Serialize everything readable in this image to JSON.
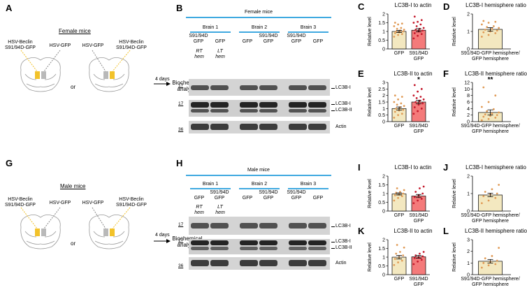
{
  "letters": {
    "A": "A",
    "B": "B",
    "C": "C",
    "D": "D",
    "E": "E",
    "F": "F",
    "G": "G",
    "H": "H",
    "I": "I",
    "J": "J",
    "K": "K",
    "L": "L"
  },
  "schematic_female": {
    "title": "Female mice",
    "brain1_left": "HSV-Beclin\nS91/94D-GFP",
    "brain1_right": "HSV-GFP",
    "brain2_left": "HSV-GFP",
    "brain2_right": "HSV-Beclin\nS91/94D-GFP",
    "or": "or",
    "days": "4 days",
    "analysis": "Biochemical\nanalysis"
  },
  "schematic_male": {
    "title": "Male mice",
    "brain1_left": "HSV-Beclin\nS91/94D-GFP",
    "brain1_right": "HSV-GFP",
    "brain2_left": "HSV-GFP",
    "brain2_right": "HSV-Beclin\nS91/94D-GFP",
    "or": "or",
    "days": "4 days",
    "analysis": "Biochemical\nanalysis"
  },
  "blot_female": {
    "title": "Female mice",
    "brains": [
      "Brain 1",
      "Brain 2",
      "Brain 3"
    ],
    "brain1_lanes": [
      "S91/94D\nGFP",
      "GFP"
    ],
    "brain2_lanes": [
      "GFP",
      "S91/94D\nGFP"
    ],
    "brain3_lanes": [
      "S91/94D\nGFP",
      "GFP"
    ],
    "hem": [
      "RT\nhem",
      "LT\nhem"
    ],
    "mw": [
      "17",
      "17",
      "36"
    ],
    "bands": [
      "LC3B-I",
      "LC3B-I",
      "LC3B-II",
      "Actin"
    ]
  },
  "blot_male": {
    "title": "Male mice",
    "brains": [
      "Brain 1",
      "Brain 2",
      "Brain 3"
    ],
    "brain1_lanes": [
      "GFP",
      "S91/94D\nGFP"
    ],
    "brain2_lanes": [
      "GFP",
      "S91/94D\nGFP"
    ],
    "brain3_lanes": [
      "S91/94D\nGFP",
      "GFP"
    ],
    "hem": [
      "RT\nhem",
      "LT\nhem"
    ],
    "mw": [
      "17",
      "17",
      "36"
    ],
    "bands": [
      "LC3B-I",
      "LC3B-I",
      "LC3B-II",
      "Actin"
    ]
  },
  "colors": {
    "gfp_bar": "#f3e8c0",
    "mut_bar": "#f47a7a",
    "gfp_dot": "#e09a55",
    "mut_dot": "#c4182b",
    "blue_rule": "#3fa9e0",
    "striatum": "#f2c22a"
  },
  "chart_data": [
    {
      "id": "C",
      "type": "bar",
      "title": "LC3B-I to actin",
      "ylabel": "Relative level",
      "ylim": [
        0,
        2
      ],
      "yticks": [
        "0",
        "0.5",
        "1",
        "1.5",
        "2"
      ],
      "categories": [
        "GFP",
        "S91/94D\nGFP"
      ],
      "values": [
        1.0,
        1.07
      ],
      "errors": [
        0.06,
        0.09
      ],
      "points": [
        [
          0.7,
          0.8,
          0.85,
          0.9,
          0.95,
          1.0,
          1.0,
          1.05,
          1.1,
          1.15,
          1.2,
          1.3,
          1.4,
          1.45,
          1.5
        ],
        [
          0.6,
          0.75,
          0.85,
          0.9,
          1.0,
          1.05,
          1.1,
          1.15,
          1.2,
          1.3,
          1.4,
          1.5,
          1.55,
          1.65,
          1.85
        ]
      ],
      "significance": ""
    },
    {
      "id": "D",
      "type": "bar",
      "title": "LC3B-I hemisphere ratio",
      "ylabel": "Relative level",
      "ylim": [
        0,
        2
      ],
      "yticks": [
        "0",
        "1",
        "2"
      ],
      "categories": [
        "S91/94D-GFP hemisphere/\nGFP hemisphere"
      ],
      "values": [
        1.12
      ],
      "errors": [
        0.1
      ],
      "points": [
        [
          0.7,
          0.8,
          0.9,
          0.95,
          1.0,
          1.05,
          1.1,
          1.15,
          1.2,
          1.25,
          1.3,
          1.4,
          1.5,
          1.55,
          1.6
        ]
      ],
      "significance": ""
    },
    {
      "id": "E",
      "type": "bar",
      "title": "LC3B-II to actin",
      "ylabel": "Relative level",
      "ylim": [
        0,
        3
      ],
      "yticks": [
        "0",
        "0.5",
        "1",
        "1.5",
        "2",
        "2.5",
        "3"
      ],
      "categories": [
        "GFP",
        "S91/94D\nGFP"
      ],
      "values": [
        1.0,
        1.5
      ],
      "errors": [
        0.12,
        0.14
      ],
      "points": [
        [
          0.3,
          0.5,
          0.6,
          0.75,
          0.85,
          0.9,
          1.0,
          1.1,
          1.2,
          1.3,
          1.4,
          1.5,
          1.7,
          1.9,
          2.0
        ],
        [
          0.6,
          0.8,
          1.0,
          1.1,
          1.3,
          1.4,
          1.5,
          1.6,
          1.7,
          1.8,
          1.9,
          2.0,
          2.3,
          2.5,
          2.8
        ]
      ],
      "significance": "*"
    },
    {
      "id": "F",
      "type": "bar",
      "title": "LC3B-II hemisphere ratio",
      "ylabel": "Relative level",
      "ylim": [
        0,
        12
      ],
      "yticks": [
        "0",
        "2",
        "4",
        "6",
        "8",
        "10",
        "12"
      ],
      "categories": [
        "S91/94D-GFP hemisphere/\nGFP hemisphere"
      ],
      "values": [
        2.8
      ],
      "errors": [
        0.8
      ],
      "points": [
        [
          0.4,
          0.8,
          1.2,
          1.5,
          1.8,
          2.0,
          2.2,
          2.5,
          2.8,
          3.2,
          3.8,
          4.5,
          6.0,
          8.0,
          10.5
        ]
      ],
      "significance": "**"
    },
    {
      "id": "I",
      "type": "bar",
      "title": "LC3B-I to actin",
      "ylabel": "Relative level",
      "ylim": [
        0,
        2
      ],
      "yticks": [
        "0",
        "0.5",
        "1",
        "1.5",
        "2"
      ],
      "categories": [
        "GFP",
        "S91/94D\nGFP"
      ],
      "values": [
        0.98,
        0.86
      ],
      "errors": [
        0.06,
        0.09
      ],
      "points": [
        [
          0.6,
          0.75,
          0.85,
          0.9,
          0.95,
          1.0,
          1.05,
          1.1,
          1.2,
          1.3
        ],
        [
          0.45,
          0.6,
          0.7,
          0.8,
          0.9,
          1.0,
          1.1,
          1.3,
          1.4
        ]
      ],
      "significance": ""
    },
    {
      "id": "J",
      "type": "bar",
      "title": "LC3B-I hemisphere ratio",
      "ylabel": "Relative level",
      "ylim": [
        0,
        2
      ],
      "yticks": [
        "0",
        "1",
        "2"
      ],
      "categories": [
        "S91/94D-GFP hemisphere/\nGFP hemisphere"
      ],
      "values": [
        0.92
      ],
      "errors": [
        0.1
      ],
      "points": [
        [
          0.45,
          0.6,
          0.75,
          0.85,
          0.95,
          1.0,
          1.1,
          1.25,
          1.5
        ]
      ],
      "significance": ""
    },
    {
      "id": "K",
      "type": "bar",
      "title": "LC3B-II to actin",
      "ylabel": "Relative level",
      "ylim": [
        0,
        2
      ],
      "yticks": [
        "0",
        "0.5",
        "1",
        "1.5",
        "2"
      ],
      "categories": [
        "GFP",
        "S91/94D\nGFP"
      ],
      "values": [
        1.0,
        1.02
      ],
      "errors": [
        0.1,
        0.08
      ],
      "points": [
        [
          0.55,
          0.7,
          0.8,
          0.9,
          1.0,
          1.1,
          1.2,
          1.3,
          1.55,
          1.7
        ],
        [
          0.6,
          0.75,
          0.85,
          0.95,
          1.0,
          1.05,
          1.1,
          1.2,
          1.3
        ]
      ],
      "significance": ""
    },
    {
      "id": "L",
      "type": "bar",
      "title": "LC3B-II hemisphere ratio",
      "ylabel": "Relative level",
      "ylim": [
        0,
        3
      ],
      "yticks": [
        "0",
        "1",
        "2",
        "3"
      ],
      "categories": [
        "S91/94D-GFP hemisphere/\nGFP hemisphere"
      ],
      "values": [
        1.15
      ],
      "errors": [
        0.15
      ],
      "points": [
        [
          0.6,
          0.8,
          0.9,
          1.0,
          1.1,
          1.2,
          1.4,
          1.6,
          2.3
        ]
      ],
      "significance": ""
    }
  ]
}
